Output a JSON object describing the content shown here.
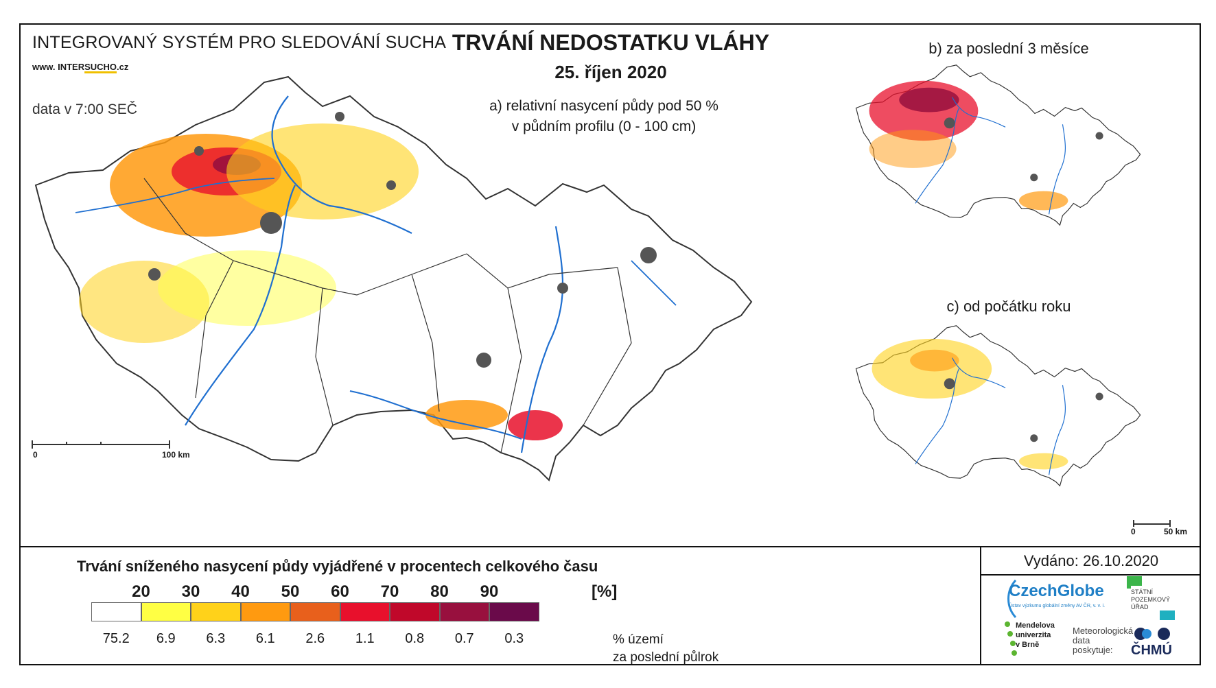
{
  "header": {
    "system_title": "INTEGROVANÝ SYSTÉM PRO SLEDOVÁNÍ SUCHA",
    "url_prefix": "www. INTER",
    "url_brand": "SUCHO",
    "url_suffix": ".cz",
    "data_time": "data v 7:00 SEČ",
    "main_title": "TRVÁNÍ NEDOSTATKU VLÁHY",
    "date": "25. říjen 2020"
  },
  "maps": {
    "a": {
      "caption_line1": "a) relativní nasycení půdy pod 50 %",
      "caption_line2": "v půdním profilu (0 - 100 cm)",
      "scale_start": "0",
      "scale_end": "100 km"
    },
    "b": {
      "caption": "b) za poslední 3 měsíce"
    },
    "c": {
      "caption": "c) od počátku roku",
      "scale_start": "0",
      "scale_end": "50 km"
    }
  },
  "legend": {
    "title": "Trvání sníženého nasycení půdy vyjádřené v procentech celkového času",
    "thresholds": [
      "20",
      "30",
      "40",
      "50",
      "60",
      "70",
      "80",
      "90"
    ],
    "unit": "[%]",
    "classes": [
      {
        "color": "#ffffff",
        "share": "75.2"
      },
      {
        "color": "#ffff44",
        "share": "6.9"
      },
      {
        "color": "#ffd21a",
        "share": "6.3"
      },
      {
        "color": "#ff9a10",
        "share": "6.1"
      },
      {
        "color": "#e8601c",
        "share": "2.6"
      },
      {
        "color": "#e8102c",
        "share": "1.1"
      },
      {
        "color": "#c0082a",
        "share": "0.8"
      },
      {
        "color": "#98103e",
        "share": "0.7"
      },
      {
        "color": "#6a0a4a",
        "share": "0.3"
      }
    ],
    "note_line1": "% území",
    "note_line2": "za poslední půlrok"
  },
  "footer": {
    "issued": "Vydáno: 26.10.2020",
    "czechglobe": "CzechGlobe",
    "czechglobe_sub": "Ústav výzkumu globální změny AV ČR, v. v. i.",
    "spu_line1": "STÁTNÍ",
    "spu_line2": "POZEMKOVÝ",
    "spu_line3": "ÚŘAD",
    "mendel_line1": "Mendelova",
    "mendel_line2": "univerzita",
    "mendel_line3": "v Brně",
    "met_line1": "Meteorologická",
    "met_line2": "data",
    "met_line3": "poskytuje:",
    "chmu": "ČHMÚ"
  }
}
